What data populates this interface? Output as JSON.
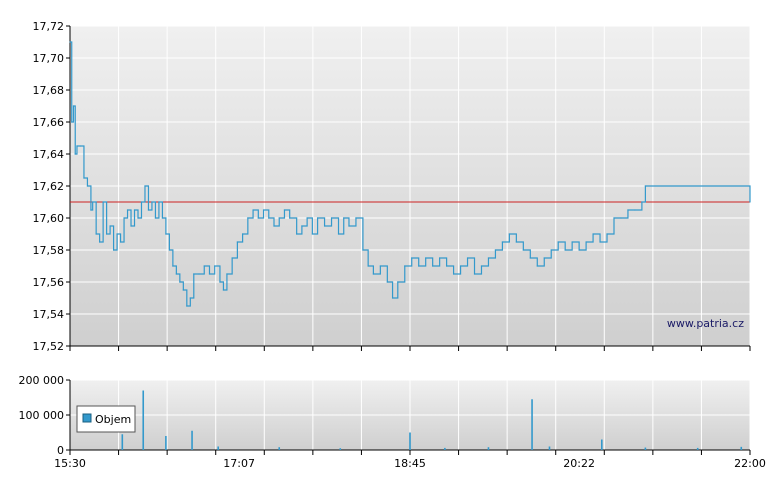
{
  "chart_data": [
    {
      "type": "line",
      "title": "",
      "xlabel": "",
      "ylabel": "",
      "ylim": [
        17.52,
        17.72
      ],
      "y_ticks": [
        "17,72",
        "17,70",
        "17,68",
        "17,66",
        "17,64",
        "17,62",
        "17,60",
        "17,58",
        "17,56",
        "17,54",
        "17,52"
      ],
      "grid": true,
      "reference_line": {
        "value": 17.61,
        "color": "#cc2222"
      },
      "watermark": "www.patria.cz",
      "series": [
        {
          "color": "#3399cc",
          "points": [
            [
              "15:30",
              17.71
            ],
            [
              "15:31",
              17.66
            ],
            [
              "15:32",
              17.67
            ],
            [
              "15:33",
              17.64
            ],
            [
              "15:34",
              17.645
            ],
            [
              "15:36",
              17.645
            ],
            [
              "15:38",
              17.625
            ],
            [
              "15:40",
              17.62
            ],
            [
              "15:42",
              17.605
            ],
            [
              "15:43",
              17.61
            ],
            [
              "15:45",
              17.59
            ],
            [
              "15:47",
              17.585
            ],
            [
              "15:49",
              17.61
            ],
            [
              "15:51",
              17.59
            ],
            [
              "15:53",
              17.595
            ],
            [
              "15:55",
              17.58
            ],
            [
              "15:57",
              17.59
            ],
            [
              "15:59",
              17.585
            ],
            [
              "16:01",
              17.6
            ],
            [
              "16:03",
              17.605
            ],
            [
              "16:05",
              17.595
            ],
            [
              "16:07",
              17.605
            ],
            [
              "16:09",
              17.6
            ],
            [
              "16:11",
              17.61
            ],
            [
              "16:13",
              17.62
            ],
            [
              "16:15",
              17.605
            ],
            [
              "16:17",
              17.61
            ],
            [
              "16:19",
              17.6
            ],
            [
              "16:21",
              17.61
            ],
            [
              "16:23",
              17.6
            ],
            [
              "16:25",
              17.59
            ],
            [
              "16:27",
              17.58
            ],
            [
              "16:29",
              17.57
            ],
            [
              "16:31",
              17.565
            ],
            [
              "16:33",
              17.56
            ],
            [
              "16:35",
              17.555
            ],
            [
              "16:37",
              17.545
            ],
            [
              "16:39",
              17.55
            ],
            [
              "16:41",
              17.565
            ],
            [
              "16:44",
              17.565
            ],
            [
              "16:47",
              17.57
            ],
            [
              "16:50",
              17.565
            ],
            [
              "16:53",
              17.57
            ],
            [
              "16:56",
              17.56
            ],
            [
              "16:58",
              17.555
            ],
            [
              "17:00",
              17.565
            ],
            [
              "17:03",
              17.575
            ],
            [
              "17:06",
              17.585
            ],
            [
              "17:09",
              17.59
            ],
            [
              "17:12",
              17.6
            ],
            [
              "17:15",
              17.605
            ],
            [
              "17:18",
              17.6
            ],
            [
              "17:21",
              17.605
            ],
            [
              "17:24",
              17.6
            ],
            [
              "17:27",
              17.595
            ],
            [
              "17:30",
              17.6
            ],
            [
              "17:33",
              17.605
            ],
            [
              "17:36",
              17.6
            ],
            [
              "17:40",
              17.59
            ],
            [
              "17:43",
              17.595
            ],
            [
              "17:46",
              17.6
            ],
            [
              "17:49",
              17.59
            ],
            [
              "17:52",
              17.6
            ],
            [
              "17:56",
              17.595
            ],
            [
              "18:00",
              17.6
            ],
            [
              "18:04",
              17.59
            ],
            [
              "18:07",
              17.6
            ],
            [
              "18:10",
              17.595
            ],
            [
              "18:14",
              17.6
            ],
            [
              "18:18",
              17.58
            ],
            [
              "18:21",
              17.57
            ],
            [
              "18:24",
              17.565
            ],
            [
              "18:28",
              17.57
            ],
            [
              "18:32",
              17.56
            ],
            [
              "18:35",
              17.55
            ],
            [
              "18:38",
              17.56
            ],
            [
              "18:42",
              17.57
            ],
            [
              "18:46",
              17.575
            ],
            [
              "18:50",
              17.57
            ],
            [
              "18:54",
              17.575
            ],
            [
              "18:58",
              17.57
            ],
            [
              "19:02",
              17.575
            ],
            [
              "19:06",
              17.57
            ],
            [
              "19:10",
              17.565
            ],
            [
              "19:14",
              17.57
            ],
            [
              "19:18",
              17.575
            ],
            [
              "19:22",
              17.565
            ],
            [
              "19:26",
              17.57
            ],
            [
              "19:30",
              17.575
            ],
            [
              "19:34",
              17.58
            ],
            [
              "19:38",
              17.585
            ],
            [
              "19:42",
              17.59
            ],
            [
              "19:46",
              17.585
            ],
            [
              "19:50",
              17.58
            ],
            [
              "19:54",
              17.575
            ],
            [
              "19:58",
              17.57
            ],
            [
              "20:02",
              17.575
            ],
            [
              "20:06",
              17.58
            ],
            [
              "20:10",
              17.585
            ],
            [
              "20:14",
              17.58
            ],
            [
              "20:18",
              17.585
            ],
            [
              "20:22",
              17.58
            ],
            [
              "20:26",
              17.585
            ],
            [
              "20:30",
              17.59
            ],
            [
              "20:34",
              17.585
            ],
            [
              "20:38",
              17.59
            ],
            [
              "20:42",
              17.6
            ],
            [
              "20:46",
              17.6
            ],
            [
              "20:50",
              17.605
            ],
            [
              "20:54",
              17.605
            ],
            [
              "20:58",
              17.61
            ],
            [
              "21:00",
              17.62
            ],
            [
              "22:00",
              17.61
            ]
          ]
        }
      ]
    },
    {
      "type": "bar",
      "title": "",
      "xlabel": "",
      "ylabel": "",
      "ylim": [
        0,
        200000
      ],
      "y_ticks": [
        "200 000",
        "100 000",
        "0"
      ],
      "x_ticks": [
        "15:30",
        "17:07",
        "18:45",
        "20:22",
        "22:00"
      ],
      "legend": {
        "label": "Objem",
        "color": "#3399cc",
        "position": "left"
      },
      "series": [
        {
          "name": "Objem",
          "color": "#3399cc",
          "points": [
            [
              "16:00",
              45000
            ],
            [
              "16:12",
              170000
            ],
            [
              "16:25",
              40000
            ],
            [
              "16:40",
              55000
            ],
            [
              "16:55",
              10000
            ],
            [
              "17:30",
              8000
            ],
            [
              "18:05",
              5000
            ],
            [
              "18:45",
              50000
            ],
            [
              "19:05",
              6000
            ],
            [
              "19:30",
              8000
            ],
            [
              "19:55",
              145000
            ],
            [
              "20:05",
              10000
            ],
            [
              "20:35",
              30000
            ],
            [
              "21:00",
              7000
            ],
            [
              "21:30",
              6000
            ],
            [
              "21:55",
              9000
            ]
          ]
        }
      ]
    }
  ]
}
